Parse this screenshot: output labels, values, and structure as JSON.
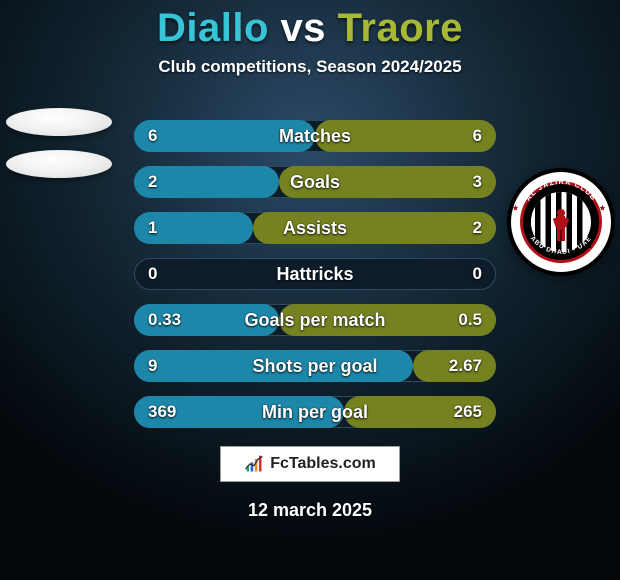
{
  "background": {
    "inner": "#2c4a68",
    "mid": "#122633",
    "outer": "#03070b"
  },
  "title": {
    "player1": "Diallo",
    "vs": "vs",
    "player2": "Traore",
    "color_p1": "#36c4d6",
    "color_vs": "#ffffff",
    "color_p2": "#a6b834"
  },
  "subtitle": "Club competitions, Season 2024/2025",
  "row_style": {
    "bg": "#0e1c29",
    "border": "#2e4a62",
    "fill_left": "#1d87a9",
    "fill_right": "#75821f"
  },
  "stats": [
    {
      "label": "Matches",
      "left_value": "6",
      "right_value": "6",
      "left_pct": 50,
      "right_pct": 50
    },
    {
      "label": "Goals",
      "left_value": "2",
      "right_value": "3",
      "left_pct": 40,
      "right_pct": 60
    },
    {
      "label": "Assists",
      "left_value": "1",
      "right_value": "2",
      "left_pct": 33,
      "right_pct": 67
    },
    {
      "label": "Hattricks",
      "left_value": "0",
      "right_value": "0",
      "left_pct": 0,
      "right_pct": 0
    },
    {
      "label": "Goals per match",
      "left_value": "0.33",
      "right_value": "0.5",
      "left_pct": 40,
      "right_pct": 60
    },
    {
      "label": "Shots per goal",
      "left_value": "9",
      "right_value": "2.67",
      "left_pct": 77,
      "right_pct": 23
    },
    {
      "label": "Min per goal",
      "left_value": "369",
      "right_value": "265",
      "left_pct": 58,
      "right_pct": 42
    }
  ],
  "brand": "FcTables.com",
  "date": "12 march 2025",
  "right_badge": {
    "top_text": "AL JAZIRA CLUB",
    "bottom_text": "ABU DHABI - UAE",
    "ring_outer": "#000000",
    "ring_white": "#ffffff",
    "ring_red": "#b01116",
    "center_bg": "#ffffff",
    "stripe": "#000000"
  }
}
